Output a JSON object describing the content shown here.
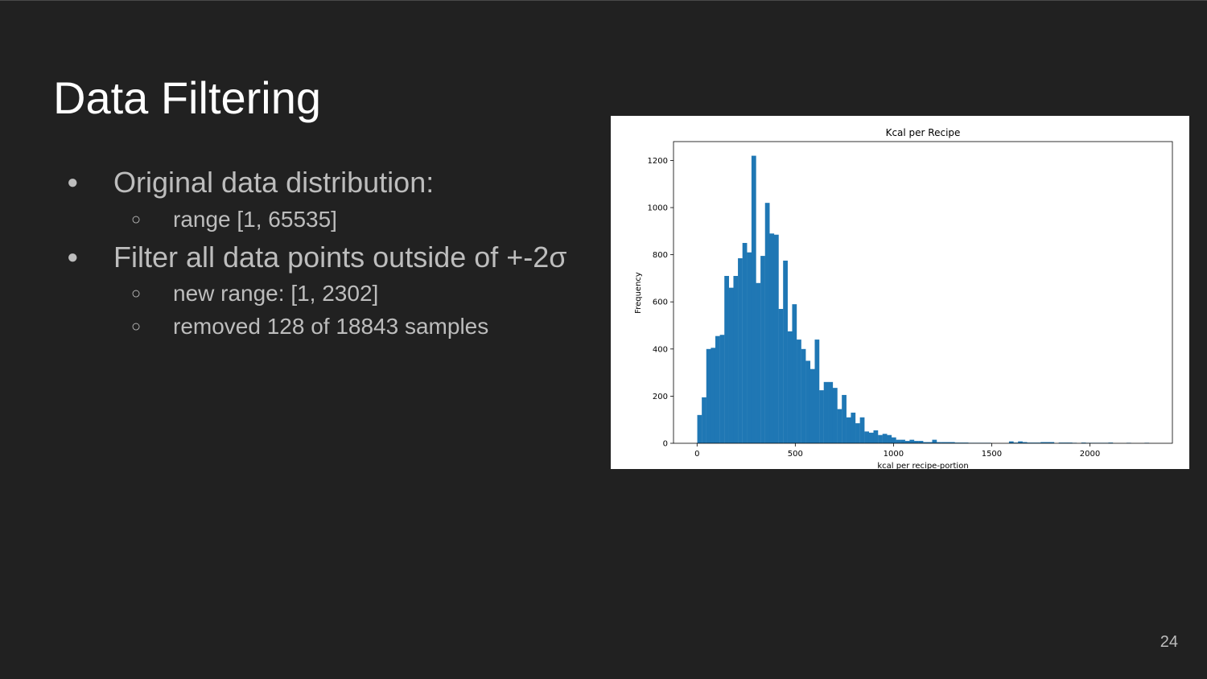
{
  "slide": {
    "title": "Data Filtering",
    "page_number": "24",
    "bullets": [
      {
        "level": 1,
        "text": "Original data distribution:"
      },
      {
        "level": 2,
        "text": "range [1, 65535]"
      },
      {
        "level": 1,
        "text": "Filter all data points outside of +-2σ"
      },
      {
        "level": 2,
        "text": "new range: [1, 2302]"
      },
      {
        "level": 2,
        "text": "removed 128 of 18843 samples"
      }
    ]
  },
  "colors": {
    "background": "#212121",
    "title": "#ffffff",
    "body_text": "#bdbdbd",
    "bar": "#1f77b4"
  },
  "chart_data": {
    "type": "bar",
    "title": "Kcal per Recipe",
    "xlabel": "kcal per recipe-portion",
    "ylabel": "Frequency",
    "xlim": [
      -120,
      2420
    ],
    "ylim": [
      0,
      1280
    ],
    "xticks": [
      0,
      500,
      1000,
      1500,
      2000
    ],
    "yticks": [
      0,
      200,
      400,
      600,
      800,
      1000,
      1200
    ],
    "bin_start": 1,
    "bin_width": 23,
    "grid": false,
    "legend": "none",
    "values": [
      120,
      195,
      400,
      405,
      455,
      460,
      710,
      660,
      710,
      785,
      850,
      810,
      1220,
      680,
      795,
      1020,
      890,
      885,
      570,
      775,
      475,
      590,
      440,
      400,
      350,
      315,
      440,
      225,
      260,
      260,
      235,
      145,
      205,
      110,
      130,
      85,
      110,
      50,
      45,
      55,
      35,
      40,
      35,
      25,
      15,
      15,
      10,
      15,
      10,
      10,
      5,
      5,
      15,
      5,
      5,
      5,
      5,
      3,
      3,
      3,
      2,
      2,
      2,
      2,
      2,
      0,
      0,
      0,
      0,
      8,
      3,
      8,
      5,
      3,
      3,
      3,
      5,
      5,
      5,
      0,
      3,
      3,
      3,
      2,
      0,
      3,
      2,
      2,
      2,
      2,
      2,
      3,
      0,
      0,
      0,
      2,
      0,
      0,
      0,
      2
    ]
  }
}
